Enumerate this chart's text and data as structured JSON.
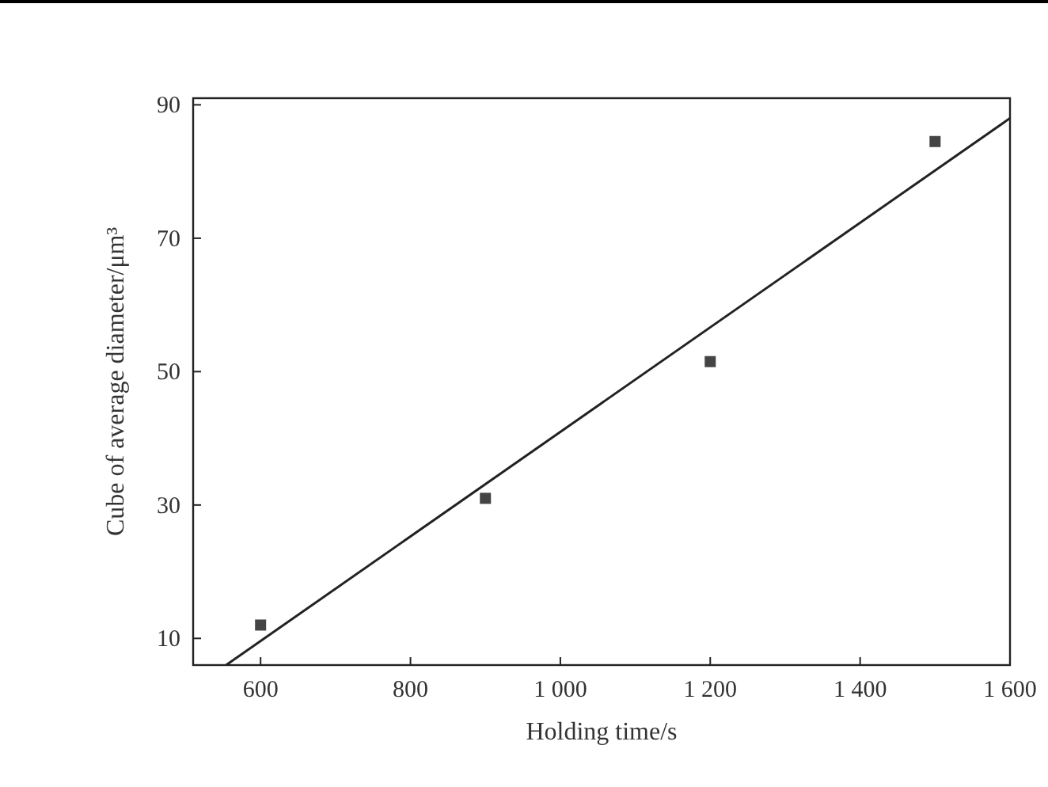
{
  "chart_data": {
    "type": "scatter",
    "xlabel": "Holding time/s",
    "ylabel": "Cube of average diameter/μm³",
    "xlim": [
      510,
      1600
    ],
    "ylim": [
      6,
      91
    ],
    "xticks": [
      600,
      800,
      {
        "value": 1000,
        "label": "1 000"
      },
      {
        "value": 1200,
        "label": "1 200"
      },
      {
        "value": 1400,
        "label": "1 400"
      },
      {
        "value": 1600,
        "label": "1 600"
      }
    ],
    "yticks": [
      10,
      30,
      50,
      70,
      90
    ],
    "grid": false,
    "marker": "square",
    "series": [
      {
        "color": "#444444",
        "x": [
          600,
          900,
          1200,
          1500
        ],
        "values": [
          12,
          31,
          51.5,
          84.5
        ]
      },
      {
        "type": "line",
        "color": "#222222",
        "x": [
          554,
          1600
        ],
        "values": [
          6,
          88
        ],
        "marker": "none",
        "line_style": "solid"
      }
    ]
  }
}
